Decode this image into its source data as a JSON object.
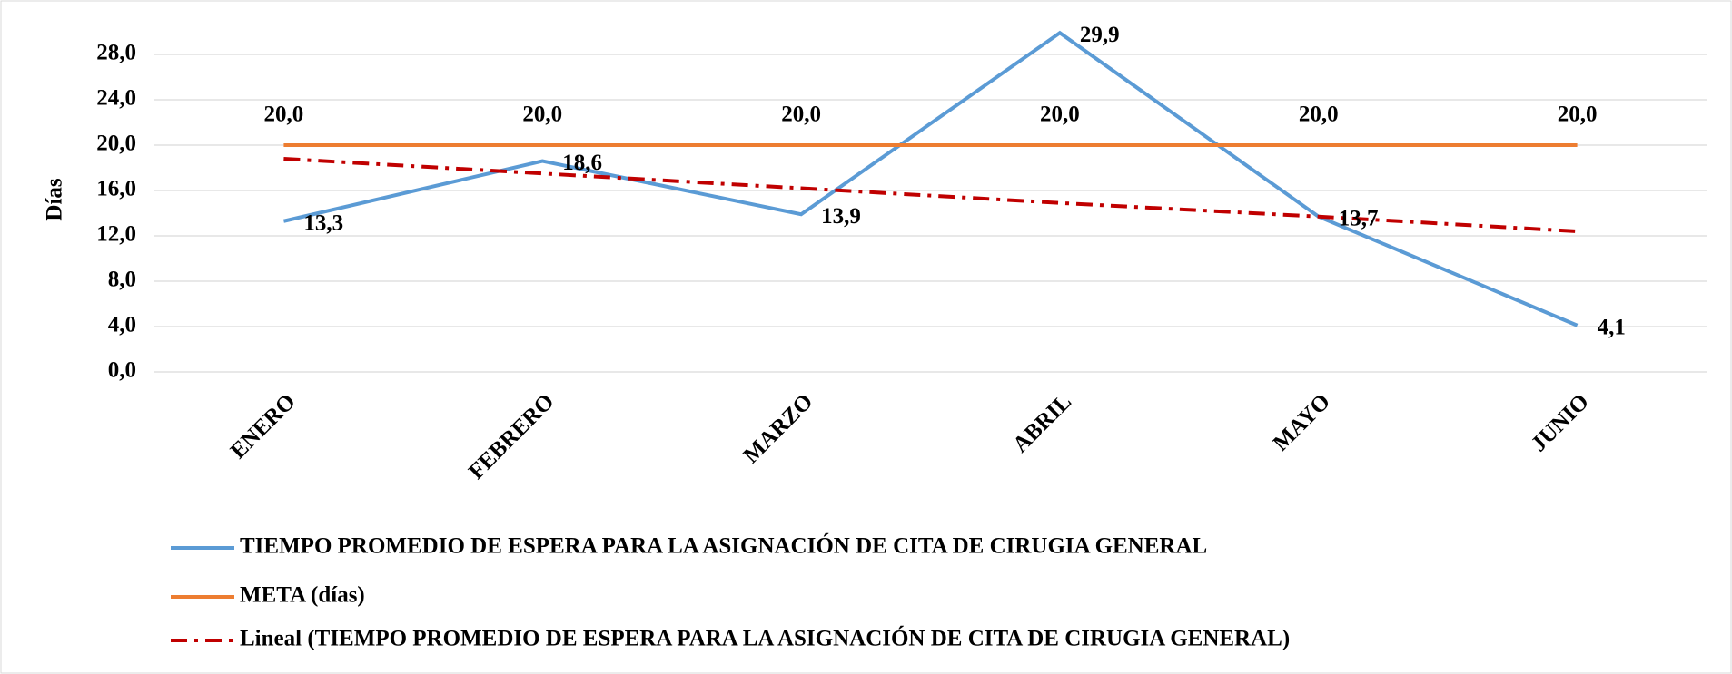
{
  "chart_data": {
    "type": "line",
    "y_label": "Días",
    "categories": [
      "ENERO",
      "FEBRERO",
      "MARZO",
      "ABRIL",
      "MAYO",
      "JUNIO"
    ],
    "series": [
      {
        "name": "TIEMPO PROMEDIO DE ESPERA PARA LA ASIGNACIÓN DE CITA DE CIRUGIA GENERAL",
        "color": "#5b9bd5",
        "dash": "solid",
        "label_position": "right",
        "values": [
          13.3,
          18.6,
          13.9,
          29.9,
          13.7,
          4.1
        ],
        "value_labels": [
          "13,3",
          "18,6",
          "13,9",
          "29,9",
          "13,7",
          "4,1"
        ]
      },
      {
        "name": "META (días)",
        "color": "#ed7d31",
        "dash": "solid",
        "label_position": "above",
        "values": [
          20,
          20,
          20,
          20,
          20,
          20
        ],
        "value_labels": [
          "20,0",
          "20,0",
          "20,0",
          "20,0",
          "20,0",
          "20,0"
        ]
      },
      {
        "name": "Lineal (TIEMPO PROMEDIO DE ESPERA PARA LA ASIGNACIÓN DE CITA DE CIRUGIA GENERAL)",
        "color": "#c00000",
        "dash": "dashdot",
        "values": [
          18.8,
          17.5,
          16.2,
          14.9,
          13.7,
          12.4
        ]
      }
    ],
    "ylim": [
      0,
      32
    ],
    "yticks": [
      {
        "value": 0,
        "label": "0,0"
      },
      {
        "value": 4,
        "label": "4,0"
      },
      {
        "value": 8,
        "label": "8,0"
      },
      {
        "value": 12,
        "label": "12,0"
      },
      {
        "value": 16,
        "label": "16,0"
      },
      {
        "value": 20,
        "label": "20,0"
      },
      {
        "value": 24,
        "label": "24,0"
      },
      {
        "value": 28,
        "label": "28,0"
      }
    ],
    "grid": true,
    "legend": "bottom"
  }
}
